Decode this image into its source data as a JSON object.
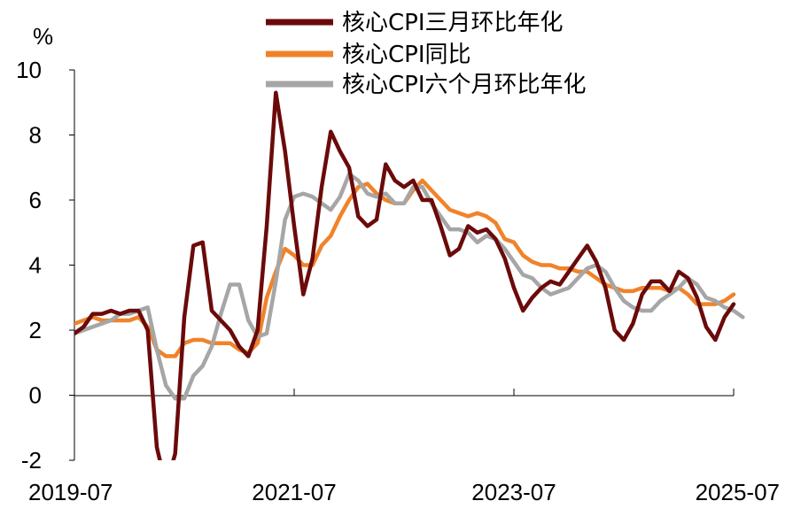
{
  "chart_data": {
    "type": "line",
    "title": "",
    "ylabel": "%",
    "xlabel": "",
    "ylim": [
      -2,
      10
    ],
    "yticks": [
      -2,
      0,
      2,
      4,
      6,
      8,
      10
    ],
    "xlim": [
      "2019-07",
      "2025-07"
    ],
    "xticks": [
      "2019-07",
      "2021-07",
      "2023-07",
      "2025-07"
    ],
    "grid": false,
    "legend_position": "top",
    "series": [
      {
        "name": "核心CPI三月环比年化",
        "color": "#6b0a0a",
        "points": [
          [
            "2019-07",
            1.9
          ],
          [
            "2019-08",
            2.1
          ],
          [
            "2019-09",
            2.5
          ],
          [
            "2019-10",
            2.5
          ],
          [
            "2019-11",
            2.6
          ],
          [
            "2019-12",
            2.5
          ],
          [
            "2020-01",
            2.6
          ],
          [
            "2020-02",
            2.6
          ],
          [
            "2020-03",
            2.0
          ],
          [
            "2020-04",
            -1.6
          ],
          [
            "2020-05",
            -2.8
          ],
          [
            "2020-06",
            -1.8
          ],
          [
            "2020-07",
            2.4
          ],
          [
            "2020-08",
            4.6
          ],
          [
            "2020-09",
            4.7
          ],
          [
            "2020-10",
            2.6
          ],
          [
            "2020-11",
            2.3
          ],
          [
            "2020-12",
            2.0
          ],
          [
            "2021-01",
            1.5
          ],
          [
            "2021-02",
            1.2
          ],
          [
            "2021-03",
            2.0
          ],
          [
            "2021-04",
            5.2
          ],
          [
            "2021-05",
            9.3
          ],
          [
            "2021-06",
            7.5
          ],
          [
            "2021-07",
            5.2
          ],
          [
            "2021-08",
            3.1
          ],
          [
            "2021-09",
            4.2
          ],
          [
            "2021-10",
            6.4
          ],
          [
            "2021-11",
            8.1
          ],
          [
            "2021-12",
            7.5
          ],
          [
            "2022-01",
            7.0
          ],
          [
            "2022-02",
            5.5
          ],
          [
            "2022-03",
            5.2
          ],
          [
            "2022-04",
            5.4
          ],
          [
            "2022-05",
            7.1
          ],
          [
            "2022-06",
            6.6
          ],
          [
            "2022-07",
            6.4
          ],
          [
            "2022-08",
            6.6
          ],
          [
            "2022-09",
            6.0
          ],
          [
            "2022-10",
            6.0
          ],
          [
            "2022-11",
            5.2
          ],
          [
            "2022-12",
            4.3
          ],
          [
            "2023-01",
            4.5
          ],
          [
            "2023-02",
            5.2
          ],
          [
            "2023-03",
            5.0
          ],
          [
            "2023-04",
            5.1
          ],
          [
            "2023-05",
            4.8
          ],
          [
            "2023-06",
            4.2
          ],
          [
            "2023-07",
            3.3
          ],
          [
            "2023-08",
            2.6
          ],
          [
            "2023-09",
            3.0
          ],
          [
            "2023-10",
            3.3
          ],
          [
            "2023-11",
            3.5
          ],
          [
            "2023-12",
            3.4
          ],
          [
            "2024-01",
            3.8
          ],
          [
            "2024-02",
            4.2
          ],
          [
            "2024-03",
            4.6
          ],
          [
            "2024-04",
            4.1
          ],
          [
            "2024-05",
            3.3
          ],
          [
            "2024-06",
            2.0
          ],
          [
            "2024-07",
            1.7
          ],
          [
            "2024-08",
            2.2
          ],
          [
            "2024-09",
            3.1
          ],
          [
            "2024-10",
            3.5
          ],
          [
            "2024-11",
            3.5
          ],
          [
            "2024-12",
            3.2
          ],
          [
            "2025-01",
            3.8
          ],
          [
            "2025-02",
            3.6
          ],
          [
            "2025-03",
            3.0
          ],
          [
            "2025-04",
            2.1
          ],
          [
            "2025-05",
            1.7
          ],
          [
            "2025-06",
            2.4
          ],
          [
            "2025-07",
            2.8
          ]
        ]
      },
      {
        "name": "核心CPI同比",
        "color": "#f0832a",
        "points": [
          [
            "2019-07",
            2.2
          ],
          [
            "2019-08",
            2.3
          ],
          [
            "2019-09",
            2.4
          ],
          [
            "2019-10",
            2.3
          ],
          [
            "2019-11",
            2.3
          ],
          [
            "2019-12",
            2.3
          ],
          [
            "2020-01",
            2.3
          ],
          [
            "2020-02",
            2.4
          ],
          [
            "2020-03",
            2.1
          ],
          [
            "2020-04",
            1.4
          ],
          [
            "2020-05",
            1.2
          ],
          [
            "2020-06",
            1.2
          ],
          [
            "2020-07",
            1.6
          ],
          [
            "2020-08",
            1.7
          ],
          [
            "2020-09",
            1.7
          ],
          [
            "2020-10",
            1.6
          ],
          [
            "2020-11",
            1.6
          ],
          [
            "2020-12",
            1.6
          ],
          [
            "2021-01",
            1.4
          ],
          [
            "2021-02",
            1.3
          ],
          [
            "2021-03",
            1.6
          ],
          [
            "2021-04",
            3.0
          ],
          [
            "2021-05",
            3.8
          ],
          [
            "2021-06",
            4.5
          ],
          [
            "2021-07",
            4.3
          ],
          [
            "2021-08",
            4.0
          ],
          [
            "2021-09",
            4.0
          ],
          [
            "2021-10",
            4.6
          ],
          [
            "2021-11",
            4.9
          ],
          [
            "2021-12",
            5.5
          ],
          [
            "2022-01",
            6.0
          ],
          [
            "2022-02",
            6.4
          ],
          [
            "2022-03",
            6.5
          ],
          [
            "2022-04",
            6.2
          ],
          [
            "2022-05",
            6.0
          ],
          [
            "2022-06",
            5.9
          ],
          [
            "2022-07",
            5.9
          ],
          [
            "2022-08",
            6.3
          ],
          [
            "2022-09",
            6.6
          ],
          [
            "2022-10",
            6.3
          ],
          [
            "2022-11",
            6.0
          ],
          [
            "2022-12",
            5.7
          ],
          [
            "2023-01",
            5.6
          ],
          [
            "2023-02",
            5.5
          ],
          [
            "2023-03",
            5.6
          ],
          [
            "2023-04",
            5.5
          ],
          [
            "2023-05",
            5.3
          ],
          [
            "2023-06",
            4.8
          ],
          [
            "2023-07",
            4.7
          ],
          [
            "2023-08",
            4.3
          ],
          [
            "2023-09",
            4.1
          ],
          [
            "2023-10",
            4.0
          ],
          [
            "2023-11",
            4.0
          ],
          [
            "2023-12",
            3.9
          ],
          [
            "2024-01",
            3.9
          ],
          [
            "2024-02",
            3.8
          ],
          [
            "2024-03",
            3.8
          ],
          [
            "2024-04",
            3.6
          ],
          [
            "2024-05",
            3.4
          ],
          [
            "2024-06",
            3.3
          ],
          [
            "2024-07",
            3.2
          ],
          [
            "2024-08",
            3.2
          ],
          [
            "2024-09",
            3.3
          ],
          [
            "2024-10",
            3.3
          ],
          [
            "2024-11",
            3.3
          ],
          [
            "2024-12",
            3.2
          ],
          [
            "2025-01",
            3.3
          ],
          [
            "2025-02",
            3.1
          ],
          [
            "2025-03",
            2.8
          ],
          [
            "2025-04",
            2.8
          ],
          [
            "2025-05",
            2.8
          ],
          [
            "2025-06",
            2.9
          ],
          [
            "2025-07",
            3.1
          ]
        ]
      },
      {
        "name": "核心CPI六个月环比年化",
        "color": "#a6a6a6",
        "points": [
          [
            "2019-07",
            1.9
          ],
          [
            "2019-08",
            2.0
          ],
          [
            "2019-09",
            2.1
          ],
          [
            "2019-10",
            2.2
          ],
          [
            "2019-11",
            2.3
          ],
          [
            "2019-12",
            2.5
          ],
          [
            "2020-01",
            2.5
          ],
          [
            "2020-02",
            2.6
          ],
          [
            "2020-03",
            2.7
          ],
          [
            "2020-04",
            1.4
          ],
          [
            "2020-05",
            0.3
          ],
          [
            "2020-06",
            -0.1
          ],
          [
            "2020-07",
            -0.1
          ],
          [
            "2020-08",
            0.6
          ],
          [
            "2020-09",
            0.9
          ],
          [
            "2020-10",
            1.5
          ],
          [
            "2020-11",
            2.5
          ],
          [
            "2020-12",
            3.4
          ],
          [
            "2021-01",
            3.4
          ],
          [
            "2021-02",
            2.3
          ],
          [
            "2021-03",
            1.8
          ],
          [
            "2021-04",
            1.9
          ],
          [
            "2021-05",
            3.5
          ],
          [
            "2021-06",
            5.4
          ],
          [
            "2021-07",
            6.1
          ],
          [
            "2021-08",
            6.2
          ],
          [
            "2021-09",
            6.1
          ],
          [
            "2021-10",
            5.9
          ],
          [
            "2021-11",
            5.7
          ],
          [
            "2021-12",
            6.1
          ],
          [
            "2022-01",
            6.8
          ],
          [
            "2022-02",
            6.6
          ],
          [
            "2022-03",
            6.2
          ],
          [
            "2022-04",
            6.1
          ],
          [
            "2022-05",
            6.2
          ],
          [
            "2022-06",
            5.9
          ],
          [
            "2022-07",
            5.9
          ],
          [
            "2022-08",
            6.4
          ],
          [
            "2022-09",
            6.4
          ],
          [
            "2022-10",
            5.9
          ],
          [
            "2022-11",
            5.5
          ],
          [
            "2022-12",
            5.1
          ],
          [
            "2023-01",
            5.1
          ],
          [
            "2023-02",
            5.0
          ],
          [
            "2023-03",
            4.7
          ],
          [
            "2023-04",
            4.9
          ],
          [
            "2023-05",
            4.8
          ],
          [
            "2023-06",
            4.5
          ],
          [
            "2023-07",
            4.1
          ],
          [
            "2023-08",
            3.7
          ],
          [
            "2023-09",
            3.6
          ],
          [
            "2023-10",
            3.3
          ],
          [
            "2023-11",
            3.1
          ],
          [
            "2023-12",
            3.2
          ],
          [
            "2024-01",
            3.3
          ],
          [
            "2024-02",
            3.6
          ],
          [
            "2024-03",
            3.9
          ],
          [
            "2024-04",
            4.0
          ],
          [
            "2024-05",
            3.8
          ],
          [
            "2024-06",
            3.3
          ],
          [
            "2024-07",
            2.9
          ],
          [
            "2024-08",
            2.7
          ],
          [
            "2024-09",
            2.6
          ],
          [
            "2024-10",
            2.6
          ],
          [
            "2024-11",
            2.9
          ],
          [
            "2024-12",
            3.1
          ],
          [
            "2025-01",
            3.3
          ],
          [
            "2025-02",
            3.6
          ],
          [
            "2025-03",
            3.4
          ],
          [
            "2025-04",
            3.0
          ],
          [
            "2025-05",
            2.9
          ],
          [
            "2025-06",
            2.7
          ],
          [
            "2025-07",
            2.6
          ],
          [
            "2025-08",
            2.4
          ]
        ]
      }
    ]
  }
}
